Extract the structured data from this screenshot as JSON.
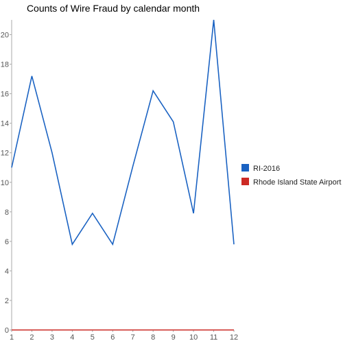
{
  "chart_data": {
    "type": "line",
    "title": "Counts of Wire Fraud by calendar month",
    "xlabel": "",
    "ylabel": "",
    "x": [
      1,
      2,
      3,
      4,
      5,
      6,
      7,
      8,
      9,
      10,
      11,
      12
    ],
    "x_tick_labels": [
      "1",
      "2",
      "3",
      "4",
      "5",
      "6",
      "7",
      "8",
      "9",
      "10",
      "11",
      "12"
    ],
    "ylim": [
      0,
      21
    ],
    "y_ticks": [
      0,
      2,
      4,
      6,
      8,
      10,
      12,
      14,
      16,
      18,
      20
    ],
    "y_tick_labels": [
      "0",
      "2",
      "4",
      "6",
      "8",
      "10",
      "12",
      "14",
      "16",
      "18",
      "20"
    ],
    "grid": false,
    "legend_position": "right",
    "series": [
      {
        "name": "RI-2016",
        "color": "#1a62c2",
        "values": [
          11,
          17.2,
          12,
          5.8,
          7.9,
          5.8,
          11.1,
          16.2,
          14.1,
          7.9,
          21,
          5.8
        ]
      },
      {
        "name": "Rhode Island State Airport",
        "color": "#cc2a25",
        "values": [
          0,
          0,
          0,
          0,
          0,
          0,
          0,
          0,
          0,
          0,
          0,
          0
        ]
      }
    ]
  }
}
